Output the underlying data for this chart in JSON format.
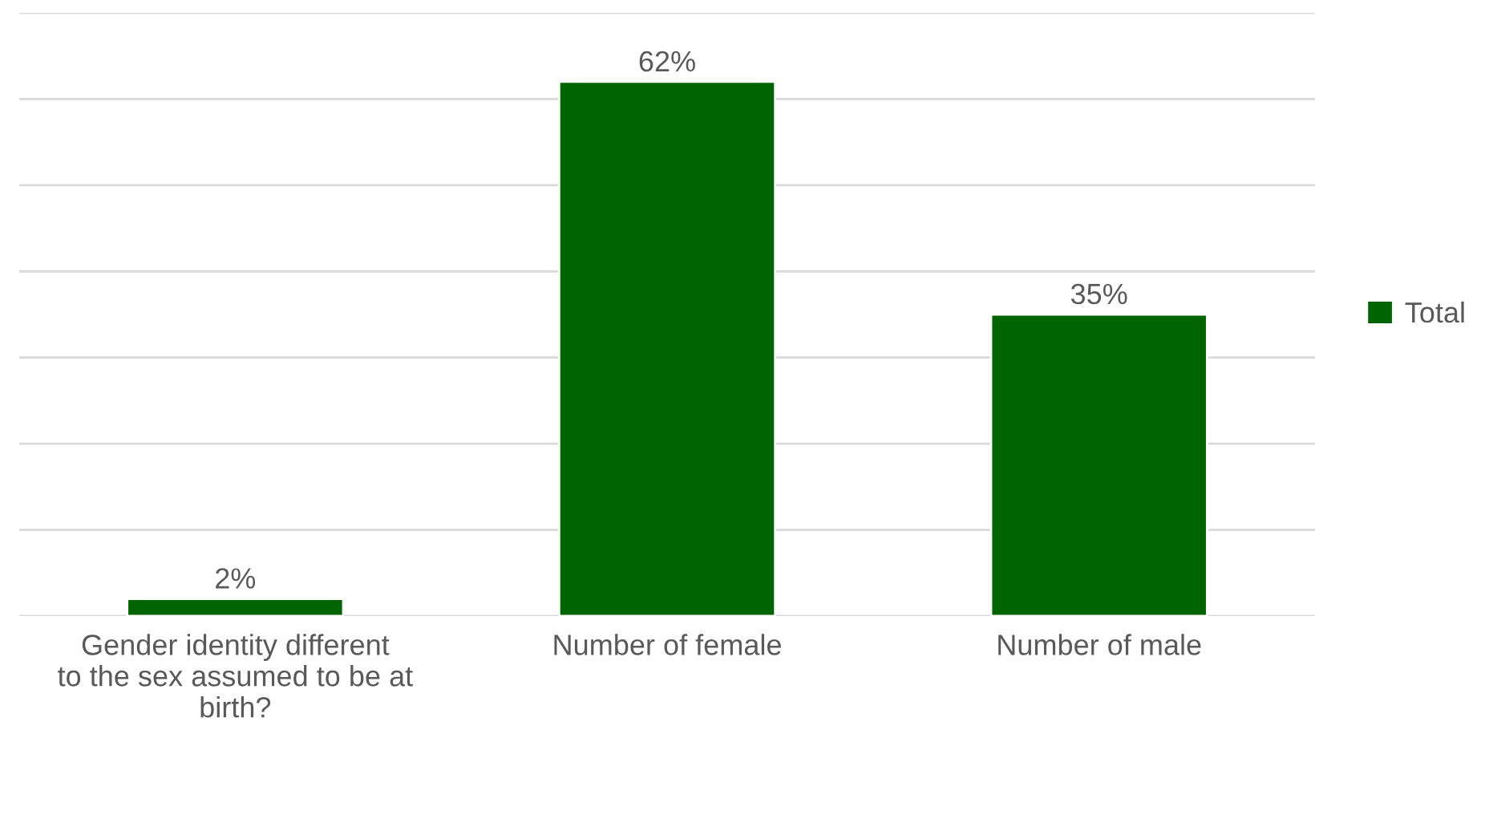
{
  "chart_data": {
    "type": "bar",
    "categories": [
      "Gender identity different to the sex assumed to be at birth?",
      "Number of female",
      "Number of male"
    ],
    "series": [
      {
        "name": "Total",
        "color": "#006400",
        "values": [
          2,
          62,
          35
        ],
        "value_labels": [
          "2%",
          "62%",
          "35%"
        ]
      }
    ],
    "ylim": [
      0,
      70
    ],
    "yticks": [
      {
        "value": 0,
        "label": null
      },
      {
        "value": 10,
        "label": null
      },
      {
        "value": 20,
        "label": null
      },
      {
        "value": 30,
        "label": null
      },
      {
        "value": 40,
        "label": null
      },
      {
        "value": 50,
        "label": null
      },
      {
        "value": 60,
        "label": null
      },
      {
        "value": 70,
        "label": null
      }
    ],
    "tick_labels": "x",
    "grid": "y",
    "legend": "right"
  }
}
